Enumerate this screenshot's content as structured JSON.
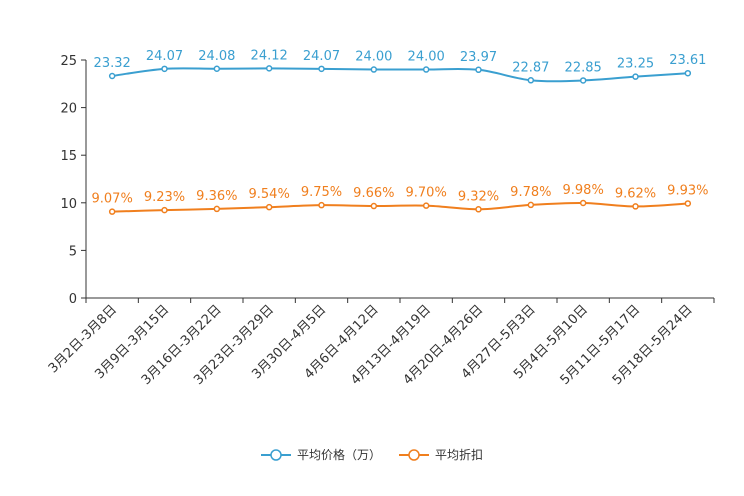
{
  "chart_data": {
    "type": "line",
    "title": "",
    "xlabel": "",
    "ylabel": "",
    "ylim": [
      0,
      25
    ],
    "yticks": [
      "0",
      "5",
      "10",
      "15",
      "20",
      "25"
    ],
    "grid": false,
    "legend_position": "bottom-center",
    "categories": [
      "3月2日-3月8日",
      "3月9日-3月15日",
      "3月16日-3月22日",
      "3月23日-3月29日",
      "3月30日-4月5日",
      "4月6日-4月12日",
      "4月13日-4月19日",
      "4月20日-4月26日",
      "4月27日-5月3日",
      "5月4日-5月10日",
      "5月11日-5月17日",
      "5月18日-5月24日"
    ],
    "series": [
      {
        "name": "平均价格（万）",
        "color": "#3a9fd0",
        "values": [
          23.32,
          24.07,
          24.08,
          24.12,
          24.07,
          24.0,
          24.0,
          23.97,
          22.87,
          22.85,
          23.25,
          23.61
        ],
        "labels": [
          "23.32",
          "24.07",
          "24.08",
          "24.12",
          "24.07",
          "24.00",
          "24.00",
          "23.97",
          "22.87",
          "22.85",
          "23.25",
          "23.61"
        ]
      },
      {
        "name": "平均折扣",
        "color": "#f07f1e",
        "values": [
          9.07,
          9.23,
          9.36,
          9.54,
          9.75,
          9.66,
          9.7,
          9.32,
          9.78,
          9.98,
          9.62,
          9.93
        ],
        "labels": [
          "9.07%",
          "9.23%",
          "9.36%",
          "9.54%",
          "9.75%",
          "9.66%",
          "9.70%",
          "9.32%",
          "9.78%",
          "9.98%",
          "9.62%",
          "9.93%"
        ]
      }
    ]
  }
}
